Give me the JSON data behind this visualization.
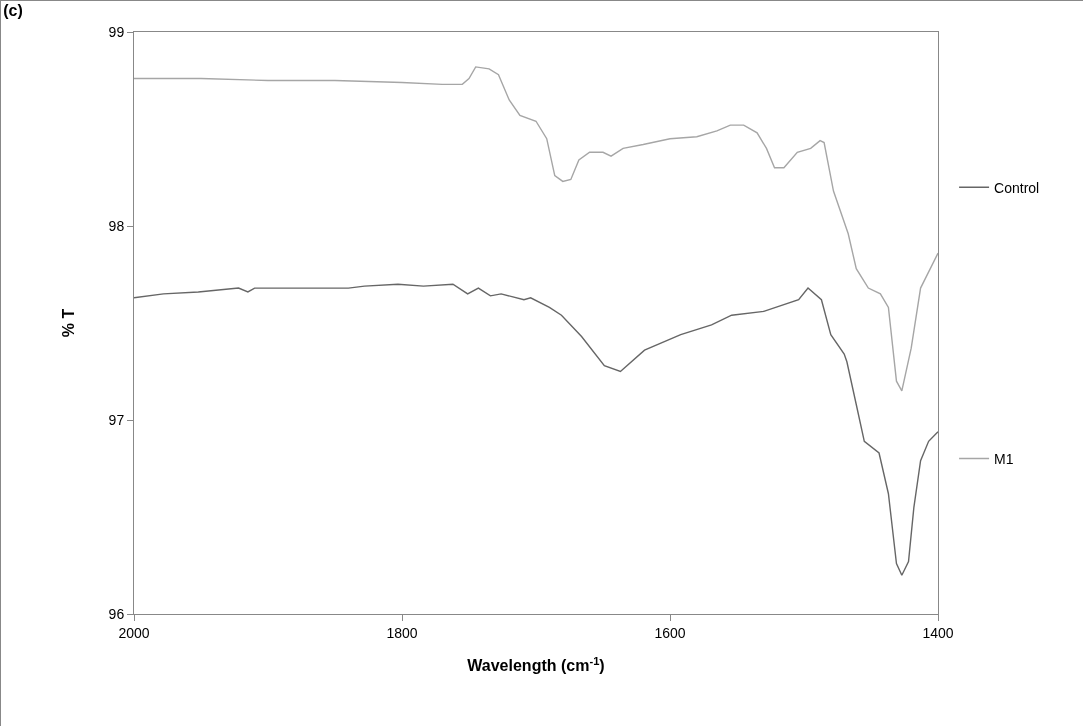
{
  "chart_data": {
    "type": "line",
    "title": "(c)",
    "xlabel": "Wavelength (cm$^{-1}$)",
    "ylabel": "% T",
    "xlim": [
      2000,
      1400
    ],
    "xticks": [
      2000,
      1800,
      1600,
      1400
    ],
    "ylim": [
      96,
      99
    ],
    "yticks": [
      96,
      97,
      98,
      99
    ],
    "grid": false,
    "legend": "right",
    "marker": "none",
    "line_style": "solid",
    "series": [
      {
        "name": "Control",
        "color": "#666666",
        "x": [
          2000,
          1978,
          1952,
          1922,
          1915,
          1910,
          1878,
          1840,
          1828,
          1803,
          1784,
          1762,
          1751,
          1743,
          1734,
          1726,
          1709,
          1704,
          1690,
          1681,
          1666,
          1649,
          1637,
          1619,
          1592,
          1569,
          1554,
          1530,
          1504,
          1497,
          1487,
          1480,
          1470,
          1468,
          1461,
          1455,
          1444,
          1437,
          1431,
          1427,
          1422,
          1418,
          1413,
          1407,
          1400
        ],
        "values": [
          97.63,
          97.65,
          97.66,
          97.68,
          97.66,
          97.68,
          97.68,
          97.68,
          97.69,
          97.7,
          97.69,
          97.7,
          97.65,
          97.68,
          97.64,
          97.65,
          97.62,
          97.63,
          97.58,
          97.54,
          97.43,
          97.28,
          97.25,
          97.36,
          97.44,
          97.49,
          97.54,
          97.56,
          97.62,
          97.68,
          97.62,
          97.44,
          97.34,
          97.3,
          97.08,
          96.89,
          96.83,
          96.62,
          96.26,
          96.2,
          96.27,
          96.55,
          96.79,
          96.89,
          96.94
        ]
      },
      {
        "name": "M1",
        "color": "#a6a6a6",
        "x": [
          2000,
          1950,
          1900,
          1850,
          1800,
          1770,
          1755,
          1750,
          1745,
          1735,
          1728,
          1720,
          1712,
          1700,
          1692,
          1686,
          1680,
          1674,
          1668,
          1660,
          1650,
          1644,
          1635,
          1620,
          1600,
          1580,
          1565,
          1555,
          1545,
          1535,
          1528,
          1522,
          1515,
          1505,
          1495,
          1488,
          1485,
          1478,
          1467,
          1461,
          1452,
          1443,
          1437,
          1431,
          1427,
          1420,
          1413,
          1400
        ],
        "values": [
          98.76,
          98.76,
          98.75,
          98.75,
          98.74,
          98.73,
          98.73,
          98.76,
          98.82,
          98.81,
          98.78,
          98.65,
          98.57,
          98.54,
          98.45,
          98.26,
          98.23,
          98.24,
          98.34,
          98.38,
          98.38,
          98.36,
          98.4,
          98.42,
          98.45,
          98.46,
          98.49,
          98.52,
          98.52,
          98.48,
          98.4,
          98.3,
          98.3,
          98.38,
          98.4,
          98.44,
          98.43,
          98.18,
          97.96,
          97.78,
          97.68,
          97.65,
          97.58,
          97.2,
          97.15,
          97.37,
          97.68,
          97.86
        ]
      }
    ]
  }
}
